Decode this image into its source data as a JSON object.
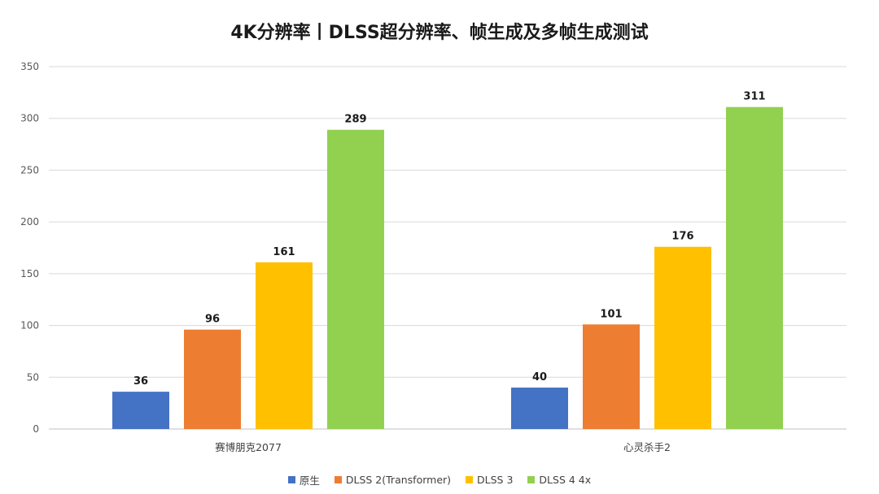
{
  "chart_data": {
    "type": "bar",
    "title": "4K分辨率丨DLSS超分辨率、帧生成及多帧生成测试",
    "categories": [
      "赛博朋克2077",
      "心灵杀手2"
    ],
    "series": [
      {
        "name": "原生",
        "color": "#4472C4",
        "values": [
          36,
          40
        ]
      },
      {
        "name": "DLSS 2(Transformer)",
        "color": "#ED7D31",
        "values": [
          96,
          101
        ]
      },
      {
        "name": "DLSS 3",
        "color": "#FFC000",
        "values": [
          161,
          176
        ]
      },
      {
        "name": "DLSS 4 4x",
        "color": "#92D050",
        "values": [
          289,
          311
        ]
      }
    ],
    "xlabel": "",
    "ylabel": "",
    "ylim": [
      0,
      350
    ],
    "yticks": [
      0,
      50,
      100,
      150,
      200,
      250,
      300,
      350
    ],
    "grid": true,
    "legend_position": "bottom"
  }
}
